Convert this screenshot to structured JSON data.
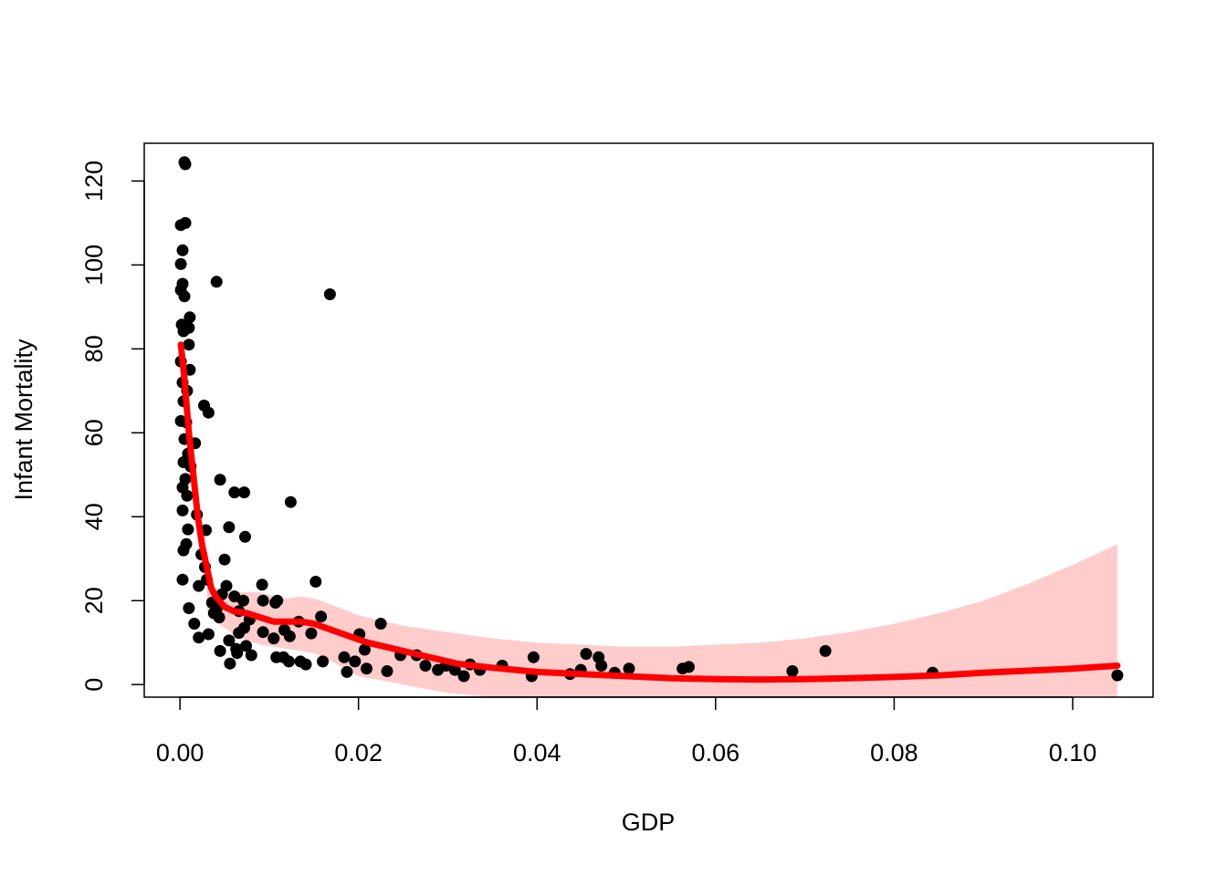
{
  "chart_data": {
    "type": "scatter",
    "title": "",
    "xlabel": "GDP",
    "ylabel": "Infant Mortality",
    "xlim": [
      -0.004,
      0.109
    ],
    "ylim": [
      -3,
      129
    ],
    "x_ticks": [
      0.0,
      0.02,
      0.04,
      0.06,
      0.08,
      0.1
    ],
    "x_tick_labels": [
      "0.00",
      "0.02",
      "0.04",
      "0.06",
      "0.08",
      "0.10"
    ],
    "y_ticks": [
      0,
      20,
      40,
      60,
      80,
      100,
      120
    ],
    "y_tick_labels": [
      "0",
      "20",
      "40",
      "60",
      "80",
      "100",
      "120"
    ],
    "grid": false,
    "colors": {
      "points": "#000000",
      "fit_line": "#ff0000",
      "confidence_band": "#ffcccc"
    },
    "points": [
      [
        0.0005,
        124.5
      ],
      [
        0.0006,
        124.0
      ],
      [
        0.0001,
        109.5
      ],
      [
        0.0006,
        110.0
      ],
      [
        0.0003,
        103.5
      ],
      [
        0.0001,
        100.2
      ],
      [
        0.0001,
        94.0
      ],
      [
        0.0003,
        95.5
      ],
      [
        0.0005,
        92.5
      ],
      [
        0.0041,
        96.0
      ],
      [
        0.0168,
        93.0
      ],
      [
        0.0011,
        87.5
      ],
      [
        0.0002,
        85.8
      ],
      [
        0.0004,
        84.2
      ],
      [
        0.001,
        85.0
      ],
      [
        0.001,
        81.0
      ],
      [
        0.0001,
        77.0
      ],
      [
        0.0011,
        75.0
      ],
      [
        0.0003,
        72.0
      ],
      [
        0.0008,
        70.0
      ],
      [
        0.0004,
        67.5
      ],
      [
        0.0027,
        66.5
      ],
      [
        0.0032,
        64.8
      ],
      [
        0.0007,
        62.5
      ],
      [
        0.0001,
        62.8
      ],
      [
        0.0005,
        58.5
      ],
      [
        0.0017,
        57.5
      ],
      [
        0.0009,
        55.0
      ],
      [
        0.0004,
        53.0
      ],
      [
        0.0012,
        52.0
      ],
      [
        0.0006,
        49.0
      ],
      [
        0.0045,
        48.8
      ],
      [
        0.0003,
        47.0
      ],
      [
        0.0008,
        45.0
      ],
      [
        0.0061,
        45.8
      ],
      [
        0.0072,
        45.8
      ],
      [
        0.0124,
        43.5
      ],
      [
        0.0003,
        41.5
      ],
      [
        0.0019,
        40.5
      ],
      [
        0.0055,
        37.5
      ],
      [
        0.0029,
        36.8
      ],
      [
        0.0009,
        37.0
      ],
      [
        0.0073,
        35.2
      ],
      [
        0.0007,
        33.5
      ],
      [
        0.0004,
        32.0
      ],
      [
        0.0024,
        31.0
      ],
      [
        0.005,
        29.8
      ],
      [
        0.0028,
        28.0
      ],
      [
        0.003,
        25.0
      ],
      [
        0.0003,
        25.0
      ],
      [
        0.0152,
        24.5
      ],
      [
        0.0021,
        23.5
      ],
      [
        0.0092,
        23.8
      ],
      [
        0.0052,
        23.5
      ],
      [
        0.0047,
        21.5
      ],
      [
        0.0061,
        21.0
      ],
      [
        0.0071,
        20.0
      ],
      [
        0.0093,
        20.0
      ],
      [
        0.0107,
        19.5
      ],
      [
        0.0109,
        20.0
      ],
      [
        0.0036,
        19.5
      ],
      [
        0.001,
        18.2
      ],
      [
        0.0041,
        18.0
      ],
      [
        0.0066,
        17.5
      ],
      [
        0.0038,
        17.0
      ],
      [
        0.0158,
        16.2
      ],
      [
        0.0044,
        16.0
      ],
      [
        0.0078,
        15.5
      ],
      [
        0.0133,
        15.0
      ],
      [
        0.0016,
        14.5
      ],
      [
        0.0225,
        14.5
      ],
      [
        0.0117,
        13.0
      ],
      [
        0.0072,
        13.5
      ],
      [
        0.0093,
        12.5
      ],
      [
        0.0147,
        12.2
      ],
      [
        0.0032,
        12.0
      ],
      [
        0.0066,
        12.3
      ],
      [
        0.0201,
        12.0
      ],
      [
        0.0105,
        11.0
      ],
      [
        0.0021,
        11.2
      ],
      [
        0.0123,
        11.5
      ],
      [
        0.0055,
        10.5
      ],
      [
        0.0074,
        9.2
      ],
      [
        0.0063,
        8.5
      ],
      [
        0.0207,
        8.3
      ],
      [
        0.0045,
        8.0
      ],
      [
        0.0723,
        8.0
      ],
      [
        0.0247,
        7.0
      ],
      [
        0.0064,
        7.5
      ],
      [
        0.008,
        7.0
      ],
      [
        0.0108,
        6.5
      ],
      [
        0.0116,
        6.5
      ],
      [
        0.0184,
        6.5
      ],
      [
        0.0265,
        7.0
      ],
      [
        0.0396,
        6.5
      ],
      [
        0.0455,
        7.3
      ],
      [
        0.0469,
        6.5
      ],
      [
        0.0122,
        5.5
      ],
      [
        0.0135,
        5.5
      ],
      [
        0.016,
        5.5
      ],
      [
        0.0196,
        5.5
      ],
      [
        0.0056,
        5.0
      ],
      [
        0.0141,
        4.8
      ],
      [
        0.0275,
        4.5
      ],
      [
        0.0298,
        4.5
      ],
      [
        0.0325,
        4.8
      ],
      [
        0.0361,
        4.5
      ],
      [
        0.0472,
        4.5
      ],
      [
        0.0503,
        3.8
      ],
      [
        0.0563,
        3.8
      ],
      [
        0.0209,
        3.8
      ],
      [
        0.0232,
        3.2
      ],
      [
        0.0308,
        3.5
      ],
      [
        0.0336,
        3.5
      ],
      [
        0.0449,
        3.5
      ],
      [
        0.057,
        4.2
      ],
      [
        0.0686,
        3.2
      ],
      [
        0.0187,
        3.0
      ],
      [
        0.0289,
        3.5
      ],
      [
        0.0437,
        2.5
      ],
      [
        0.0487,
        2.8
      ],
      [
        0.0843,
        2.8
      ],
      [
        0.0394,
        2.0
      ],
      [
        0.0318,
        2.0
      ],
      [
        0.105,
        2.2
      ]
    ],
    "fit_line": {
      "x": [
        0.0001,
        0.0005,
        0.001,
        0.0015,
        0.002,
        0.0025,
        0.003,
        0.0035,
        0.004,
        0.005,
        0.006,
        0.0075,
        0.009,
        0.0105,
        0.012,
        0.0135,
        0.015,
        0.017,
        0.019,
        0.021,
        0.023,
        0.025,
        0.028,
        0.031,
        0.035,
        0.04,
        0.045,
        0.05,
        0.055,
        0.06,
        0.065,
        0.07,
        0.075,
        0.08,
        0.085,
        0.09,
        0.095,
        0.1,
        0.105
      ],
      "y": [
        81,
        73,
        60,
        50,
        40,
        33,
        28,
        23,
        21,
        18.5,
        17.5,
        17,
        16,
        15,
        15,
        15,
        14.5,
        13,
        11.5,
        10,
        9,
        8,
        6.5,
        5,
        4,
        3,
        2.5,
        2,
        1.5,
        1.3,
        1.2,
        1.3,
        1.5,
        1.8,
        2.2,
        2.8,
        3.3,
        3.8,
        4.5
      ]
    },
    "confidence_band": {
      "x": [
        0.003,
        0.004,
        0.005,
        0.006,
        0.0075,
        0.009,
        0.0105,
        0.012,
        0.0135,
        0.015,
        0.017,
        0.02,
        0.025,
        0.03,
        0.035,
        0.04,
        0.045,
        0.05,
        0.055,
        0.06,
        0.065,
        0.07,
        0.075,
        0.08,
        0.085,
        0.09,
        0.095,
        0.1,
        0.105
      ],
      "upper": [
        26,
        23,
        22,
        22,
        22,
        22,
        21,
        20.5,
        21,
        20.5,
        19,
        16.5,
        14,
        12.5,
        11,
        10,
        9.5,
        9,
        9,
        9.5,
        10,
        11,
        12.5,
        14.5,
        17,
        20,
        24,
        28.5,
        33.5
      ],
      "lower": [
        18,
        15,
        13.5,
        12,
        10.5,
        9.5,
        9,
        8.5,
        8,
        7.5,
        5.5,
        2,
        0,
        -2,
        -3,
        -3,
        -3,
        -3,
        -3,
        -3,
        -3,
        -3,
        -3,
        -3,
        -3,
        -3,
        -3,
        -3,
        -3
      ]
    }
  }
}
